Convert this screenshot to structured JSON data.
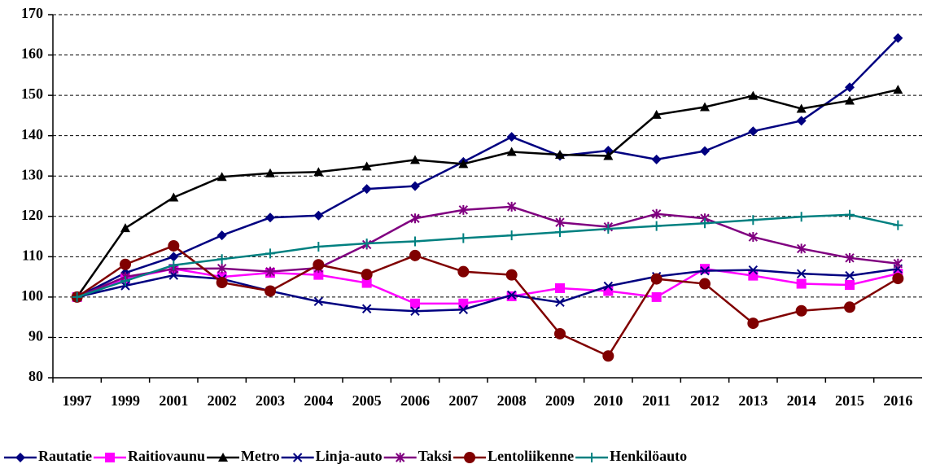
{
  "chart_data": {
    "type": "line",
    "categories": [
      "1997",
      "1999",
      "2001",
      "2002",
      "2003",
      "2004",
      "2005",
      "2006",
      "2007",
      "2008",
      "2009",
      "2010",
      "2011",
      "2012",
      "2013",
      "2014",
      "2015",
      "2016"
    ],
    "ylim": [
      80,
      170
    ],
    "yticks": [
      80,
      90,
      100,
      110,
      120,
      130,
      140,
      150,
      160,
      170
    ],
    "grid": true,
    "legend": "bottom",
    "series": [
      {
        "name": "Rautatie",
        "color": "#000080",
        "marker": "diamond",
        "values": [
          100,
          106,
          110,
          115.3,
          119.7,
          120.2,
          126.8,
          127.5,
          133.5,
          139.7,
          135,
          136.3,
          134.1,
          136.2,
          141.1,
          143.7,
          152,
          164.2
        ]
      },
      {
        "name": "Raitiovaunu",
        "color": "#ff00ff",
        "marker": "square",
        "values": [
          100,
          104.5,
          107,
          105,
          106,
          105.5,
          103.5,
          98.4,
          98.4,
          100.2,
          102.2,
          101.5,
          100,
          107,
          105.3,
          103.3,
          103,
          105.8
        ]
      },
      {
        "name": "Metro",
        "color": "#000000",
        "marker": "triangle",
        "values": [
          100,
          117.1,
          124.7,
          129.8,
          130.7,
          131,
          132.4,
          134,
          133,
          136,
          135.3,
          135,
          145.2,
          147.1,
          149.9,
          146.7,
          148.7,
          151.4
        ]
      },
      {
        "name": "Linja-auto",
        "color": "#000080",
        "marker": "x",
        "values": [
          100,
          102.8,
          105.4,
          104.5,
          101.5,
          98.9,
          97.1,
          96.5,
          96.9,
          100.5,
          98.7,
          102.7,
          105.1,
          106.5,
          106.7,
          105.8,
          105.3,
          107
        ]
      },
      {
        "name": "Taksi",
        "color": "#800080",
        "marker": "star",
        "values": [
          100,
          105,
          107,
          107.1,
          106.3,
          107.2,
          113,
          119.5,
          121.6,
          122.4,
          118.5,
          117.4,
          120.6,
          119.5,
          114.9,
          112,
          109.7,
          108.3
        ]
      },
      {
        "name": "Lentoliikenne",
        "color": "#800000",
        "marker": "circle",
        "values": [
          100,
          108.1,
          112.7,
          103.6,
          101.5,
          108,
          105.6,
          110.3,
          106.3,
          105.5,
          90.9,
          85.4,
          104.5,
          103.3,
          93.5,
          96.6,
          97.5,
          104.6
        ]
      },
      {
        "name": "Henkilöauto",
        "color": "#008080",
        "marker": "plus",
        "values": [
          100,
          104,
          107.9,
          109.4,
          110.8,
          112.5,
          113.3,
          113.8,
          114.6,
          115.3,
          116.1,
          116.9,
          117.6,
          118.3,
          119.1,
          119.9,
          120.4,
          117.8
        ]
      }
    ]
  }
}
